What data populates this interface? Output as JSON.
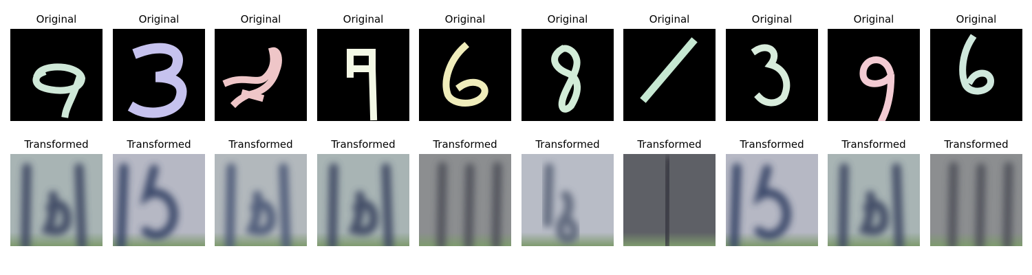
{
  "labels": {
    "original": "Original",
    "transformed": "Transformed"
  },
  "original_digits": [
    {
      "digit": "9",
      "color": "#cfe8d8"
    },
    {
      "digit": "3",
      "color": "#c6c2ee"
    },
    {
      "digit": "scribble",
      "color": "#efc6c8"
    },
    {
      "digit": "9",
      "color": "#f4f9e6"
    },
    {
      "digit": "6",
      "color": "#f0edbb"
    },
    {
      "digit": "8",
      "color": "#d2ecd8"
    },
    {
      "digit": "1",
      "color": "#c6e8d2"
    },
    {
      "digit": "3",
      "color": "#d8ecdc"
    },
    {
      "digit": "9",
      "color": "#f3cbd3"
    },
    {
      "digit": "6",
      "color": "#cfe8dc"
    }
  ],
  "transformed_panels": [
    {
      "digit": "13",
      "bg": "#a8b4b4",
      "ink": "#3a4560"
    },
    {
      "digit": "15",
      "bg": "#b6b8c4",
      "ink": "#324064"
    },
    {
      "digit": "13",
      "bg": "#b2b8bc",
      "ink": "#4a5676"
    },
    {
      "digit": "13",
      "bg": "#a8b4b4",
      "ink": "#3a4560"
    },
    {
      "digit": "11",
      "bg": "#8c8e90",
      "ink": "#4e5058"
    },
    {
      "digit": "18",
      "bg": "#b8bcc6",
      "ink": "#5a6478"
    },
    {
      "digit": "1",
      "bg": "#5e6066",
      "ink": "#34363e"
    },
    {
      "digit": "15",
      "bg": "#b6b8c4",
      "ink": "#324064"
    },
    {
      "digit": "13",
      "bg": "#a8b4b4",
      "ink": "#3a4560"
    },
    {
      "digit": "11",
      "bg": "#8c8e90",
      "ink": "#4e5058"
    }
  ]
}
